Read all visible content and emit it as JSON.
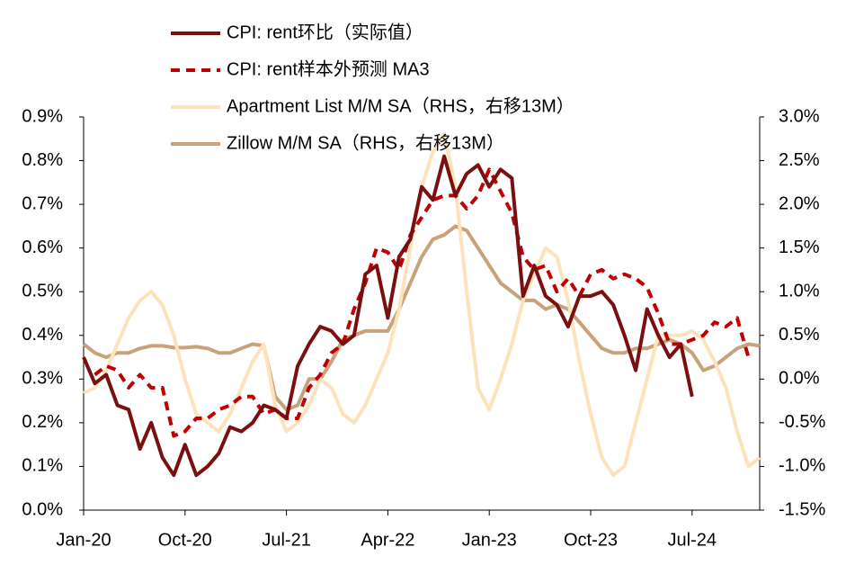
{
  "chart_data": {
    "type": "line",
    "categories": [
      "Jan-20",
      null,
      null,
      null,
      null,
      null,
      null,
      null,
      null,
      "Oct-20",
      null,
      null,
      null,
      null,
      null,
      null,
      null,
      null,
      "Jul-21",
      null,
      null,
      null,
      null,
      null,
      null,
      null,
      null,
      "Apr-22",
      null,
      null,
      null,
      null,
      null,
      null,
      null,
      null,
      "Jan-23",
      null,
      null,
      null,
      null,
      null,
      null,
      null,
      null,
      "Oct-23",
      null,
      null,
      null,
      null,
      null,
      null,
      null,
      null,
      "Jul-24",
      null,
      null,
      null,
      null,
      null,
      null
    ],
    "ylim": [
      0,
      0.9
    ],
    "yticks": [
      {
        "value": 0,
        "label": "0.0%"
      },
      {
        "value": 0.1,
        "label": "0.1%"
      },
      {
        "value": 0.2,
        "label": "0.2%"
      },
      {
        "value": 0.3,
        "label": "0.3%"
      },
      {
        "value": 0.4,
        "label": "0.4%"
      },
      {
        "value": 0.5,
        "label": "0.5%"
      },
      {
        "value": 0.6,
        "label": "0.6%"
      },
      {
        "value": 0.7,
        "label": "0.7%"
      },
      {
        "value": 0.8,
        "label": "0.8%"
      },
      {
        "value": 0.9,
        "label": "0.9%"
      }
    ],
    "y2lim": [
      -1.5,
      3.0
    ],
    "y2ticks": [
      {
        "value": -1.5,
        "label": "-1.5%"
      },
      {
        "value": -1.0,
        "label": "-1.0%"
      },
      {
        "value": -0.5,
        "label": "-0.5%"
      },
      {
        "value": 0,
        "label": "0.0%"
      },
      {
        "value": 0.5,
        "label": "0.5%"
      },
      {
        "value": 1.0,
        "label": "1.0%"
      },
      {
        "value": 1.5,
        "label": "1.5%"
      },
      {
        "value": 2.0,
        "label": "2.0%"
      },
      {
        "value": 2.5,
        "label": "2.5%"
      },
      {
        "value": 3.0,
        "label": "3.0%"
      }
    ],
    "series": [
      {
        "name": "CPI: rent环比（实际值）",
        "color": "#7a0f0f",
        "line_style": "solid",
        "values": [
          0.35,
          0.29,
          0.31,
          0.24,
          0.23,
          0.14,
          0.2,
          0.12,
          0.08,
          0.15,
          0.08,
          0.1,
          0.13,
          0.19,
          0.18,
          0.2,
          0.24,
          0.23,
          0.21,
          0.33,
          0.38,
          0.42,
          0.41,
          0.38,
          0.4,
          0.54,
          0.56,
          0.44,
          0.58,
          0.62,
          0.74,
          0.71,
          0.81,
          0.72,
          0.77,
          0.79,
          0.74,
          0.78,
          0.76,
          0.49,
          0.56,
          0.49,
          0.47,
          0.42,
          0.49,
          0.49,
          0.5,
          0.47,
          0.4,
          0.32,
          0.46,
          0.4,
          0.35,
          0.38,
          0.26,
          null,
          null,
          null,
          null,
          null,
          null
        ]
      },
      {
        "name": "CPI: rent样本外预测 MA3",
        "color": "#c00000",
        "line_style": "dashed",
        "values": [
          null,
          0.31,
          0.33,
          0.32,
          0.28,
          0.31,
          0.28,
          0.28,
          0.17,
          0.18,
          0.21,
          0.21,
          0.23,
          0.24,
          0.26,
          0.26,
          0.22,
          0.23,
          0.21,
          0.21,
          0.28,
          0.31,
          0.36,
          0.38,
          0.46,
          0.52,
          0.6,
          0.59,
          0.55,
          0.63,
          0.67,
          0.71,
          0.72,
          0.72,
          0.69,
          0.72,
          0.78,
          0.73,
          0.68,
          0.58,
          0.55,
          0.56,
          0.5,
          0.53,
          0.49,
          0.54,
          0.55,
          0.53,
          0.54,
          0.53,
          0.51,
          0.45,
          0.38,
          0.38,
          0.39,
          0.4,
          0.43,
          0.42,
          0.44,
          0.35,
          null
        ]
      },
      {
        "name": "Apartment List  M/M SA（RHS，右移13M）",
        "color": "#fde3bb",
        "line_style": "solid",
        "axis": "y2",
        "values": [
          -0.16,
          -0.1,
          0.1,
          0.4,
          0.7,
          0.9,
          1.0,
          0.85,
          0.5,
          0.0,
          -0.4,
          -0.5,
          -0.6,
          -0.4,
          -0.1,
          0.2,
          0.4,
          -0.3,
          -0.6,
          -0.5,
          -0.3,
          0.0,
          -0.1,
          -0.4,
          -0.5,
          -0.3,
          0.0,
          0.3,
          0.8,
          1.5,
          2.2,
          2.6,
          2.8,
          2.2,
          1.0,
          -0.1,
          -0.35,
          0.0,
          0.4,
          0.9,
          1.2,
          1.5,
          1.4,
          0.9,
          0.2,
          -0.4,
          -0.9,
          -1.1,
          -1.0,
          -0.5,
          0.0,
          0.5,
          0.5,
          0.5,
          0.55,
          0.45,
          0.2,
          -0.1,
          -0.6,
          -1.0,
          -0.9
        ]
      },
      {
        "name": "Zillow M/M SA（RHS，右移13M）",
        "color": "#c7a27a",
        "line_style": "solid",
        "axis": "y2",
        "values": [
          0.4,
          0.3,
          0.25,
          0.3,
          0.3,
          0.35,
          0.38,
          0.38,
          0.36,
          0.36,
          0.37,
          0.35,
          0.3,
          0.3,
          0.35,
          0.4,
          0.38,
          -0.2,
          -0.35,
          -0.3,
          0.0,
          0.0,
          0.2,
          0.45,
          0.5,
          0.55,
          0.55,
          0.55,
          0.8,
          1.1,
          1.4,
          1.6,
          1.65,
          1.75,
          1.7,
          1.5,
          1.3,
          1.1,
          1.0,
          0.9,
          0.9,
          0.8,
          0.85,
          0.8,
          0.65,
          0.5,
          0.35,
          0.3,
          0.3,
          0.35,
          0.35,
          0.4,
          0.45,
          0.4,
          0.3,
          0.1,
          0.15,
          0.25,
          0.35,
          0.4,
          0.38
        ]
      }
    ]
  }
}
